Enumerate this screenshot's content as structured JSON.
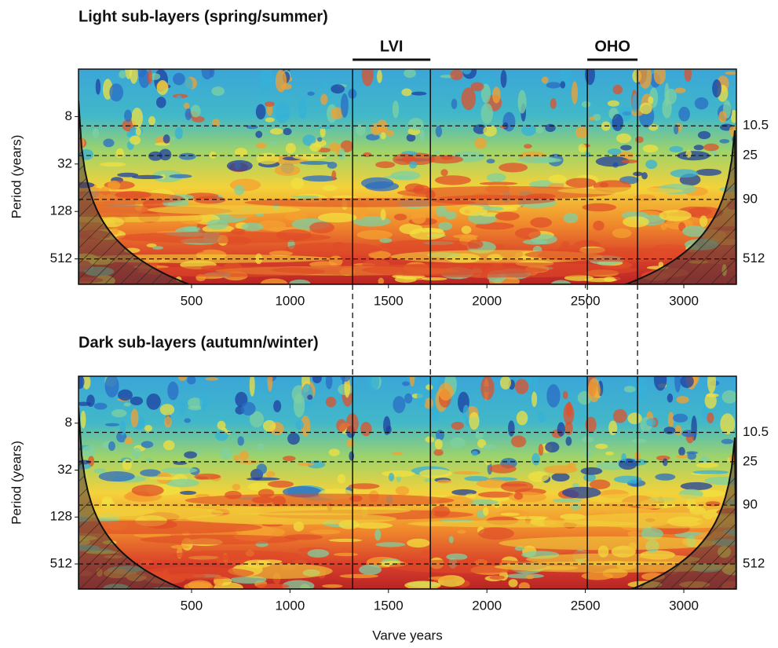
{
  "chart_data": [
    {
      "type": "heatmap",
      "title": "Light sub-layers (spring/summer)",
      "ylabel": "Period (years)",
      "xlim": [
        -74,
        3267
      ],
      "xticks": [
        500,
        1000,
        1500,
        2000,
        2500,
        3000
      ],
      "ylim": [
        2,
        1076
      ],
      "yticks": [
        8,
        32,
        128,
        512
      ],
      "log_y": true,
      "reference_periods": [
        10.5,
        25,
        90,
        512
      ],
      "events": [
        {
          "label": "LVI",
          "start": 1318,
          "end": 1713
        },
        {
          "label": "OHO",
          "start": 2510,
          "end": 2765
        }
      ]
    },
    {
      "type": "heatmap",
      "title": "Dark sub-layers (autumn/winter)",
      "ylabel": "Period (years)",
      "xlabel": "Varve years",
      "xlim": [
        -74,
        3267
      ],
      "xticks": [
        500,
        1000,
        1500,
        2000,
        2500,
        3000
      ],
      "ylim": [
        2,
        1076
      ],
      "yticks": [
        8,
        32,
        128,
        512
      ],
      "log_y": true,
      "reference_periods": [
        10.5,
        25,
        90,
        512
      ],
      "event_lines": [
        1318,
        1713,
        2510,
        2765
      ]
    }
  ]
}
